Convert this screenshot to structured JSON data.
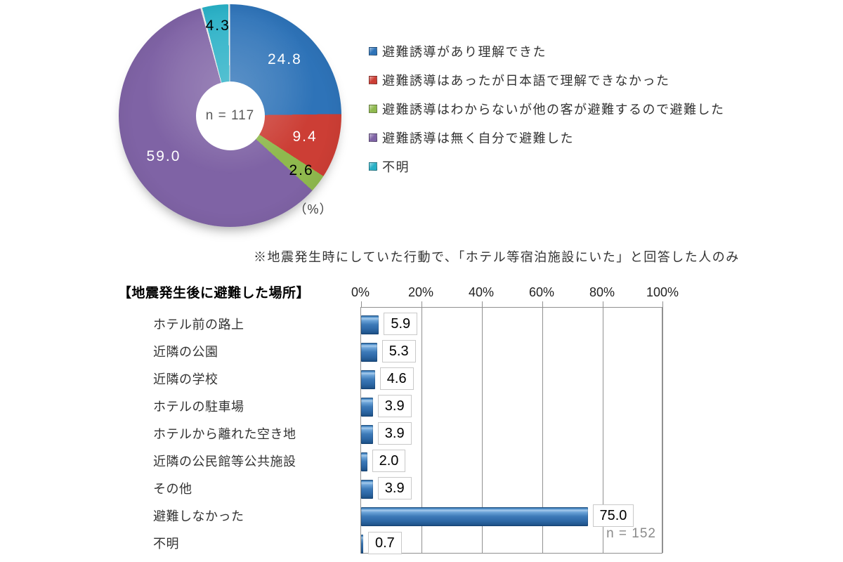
{
  "note": "※地震発生時にしていた行動で、「ホテル等宿泊施設にいた」と回答した人のみ",
  "chart_data": [
    {
      "type": "pie",
      "subtype": "donut",
      "title": "",
      "center_label": "n = 117",
      "unit_label": "（%）",
      "start_angle_deg": 0,
      "direction": "clockwise",
      "legend_position": "right",
      "labels": [
        "避難誘導があり理解できた",
        "避難誘導はあったが日本語で理解できなかった",
        "避難誘導はわからないが他の客が避難するので避難した",
        "避難誘導は無く自分で避難した",
        "不明"
      ],
      "values": [
        24.8,
        9.4,
        2.6,
        59.0,
        4.3
      ],
      "colors": [
        "#2e73b8",
        "#cc3e35",
        "#8fb94e",
        "#7f63a5",
        "#28b0c6"
      ],
      "value_label_colors": [
        "#ffffff",
        "#ffffff",
        "#000000",
        "#ffffff",
        "#000000"
      ]
    },
    {
      "type": "bar",
      "orientation": "horizontal",
      "title": "【地震発生後に避難した場所】",
      "categories": [
        "ホテル前の路上",
        "近隣の公園",
        "近隣の学校",
        "ホテルの駐車場",
        "ホテルから離れた空き地",
        "近隣の公民館等公共施設",
        "その他",
        "避難しなかった",
        "不明"
      ],
      "values": [
        5.9,
        5.3,
        4.6,
        3.9,
        3.9,
        2.0,
        3.9,
        75.0,
        0.7
      ],
      "bar_color": "#3d7ab8",
      "x_ticks": [
        "0%",
        "20%",
        "40%",
        "60%",
        "80%",
        "100%"
      ],
      "xlim": [
        0,
        100
      ],
      "grid": true,
      "n_label": "n = 152"
    }
  ]
}
